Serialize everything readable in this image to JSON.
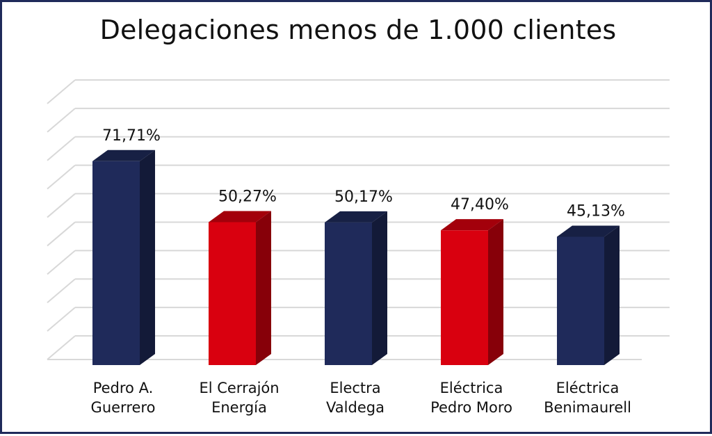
{
  "chart_data": {
    "type": "bar",
    "title": "Delegaciones menos de 1.000 clientes",
    "categories": [
      [
        "Pedro A.",
        "Guerrero"
      ],
      [
        "El Cerrajón",
        "Energía"
      ],
      [
        "Electra",
        "Valdega"
      ],
      [
        "Eléctrica",
        "Pedro Moro"
      ],
      [
        "Eléctrica",
        "Benimaurell"
      ]
    ],
    "values": [
      71.71,
      50.27,
      50.17,
      47.4,
      45.13
    ],
    "value_labels": [
      "71,71%",
      "50,27%",
      "50,17%",
      "47,40%",
      "45,13%"
    ],
    "bar_colors": [
      "#1f2a5a",
      "#d9000f",
      "#1f2a5a",
      "#d9000f",
      "#1f2a5a"
    ],
    "ylim": [
      0,
      90
    ],
    "grid": true,
    "xlabel": "",
    "ylabel": ""
  }
}
